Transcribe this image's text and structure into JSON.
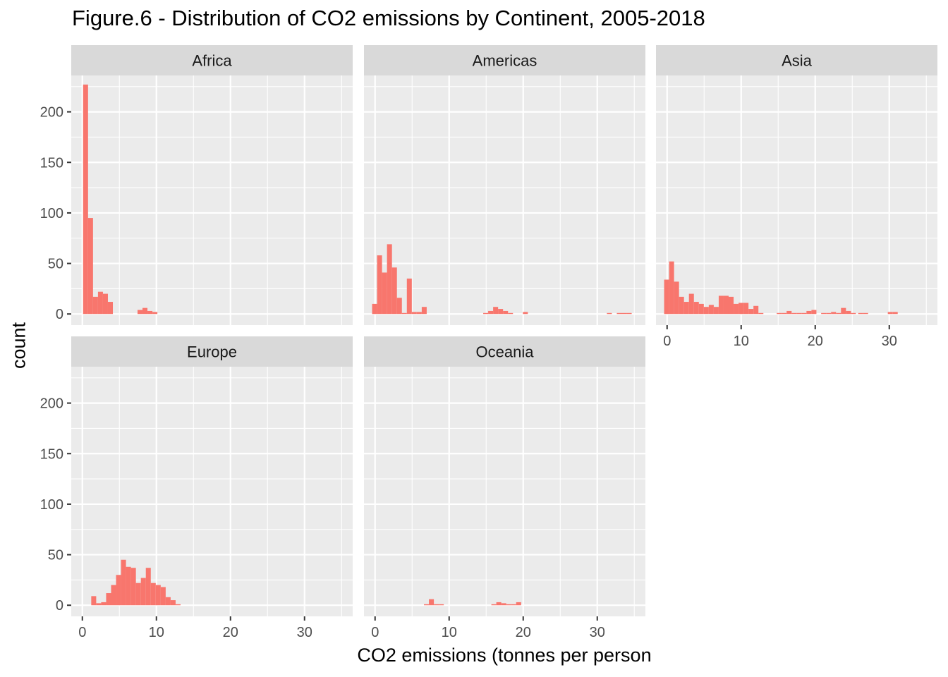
{
  "chart_data": {
    "type": "histogram",
    "title": "Figure.6 - Distribution of CO2 emissions by Continent, 2005-2018",
    "xlabel": "CO2 emissions (tonnes per person",
    "ylabel": "count",
    "xlim": [
      -1.5,
      36.5
    ],
    "ylim": [
      -11,
      236
    ],
    "x_ticks": [
      0,
      10,
      20,
      30
    ],
    "y_ticks": [
      0,
      50,
      100,
      150,
      200
    ],
    "bin_width": 0.67,
    "grid": true,
    "bar_color": "#F8766D",
    "panel_background": "#EBEBEB",
    "strip_background": "#D9D9D9",
    "panels": [
      {
        "name": "Africa",
        "bins": [
          {
            "x": 0.1,
            "count": 227
          },
          {
            "x": 0.77,
            "count": 95
          },
          {
            "x": 1.44,
            "count": 17
          },
          {
            "x": 2.11,
            "count": 22
          },
          {
            "x": 2.78,
            "count": 20
          },
          {
            "x": 3.45,
            "count": 12
          },
          {
            "x": 7.45,
            "count": 4
          },
          {
            "x": 8.12,
            "count": 6
          },
          {
            "x": 8.79,
            "count": 3
          },
          {
            "x": 9.46,
            "count": 2
          }
        ]
      },
      {
        "name": "Americas",
        "bins": [
          {
            "x": -0.4,
            "count": 10
          },
          {
            "x": 0.27,
            "count": 58
          },
          {
            "x": 0.94,
            "count": 41
          },
          {
            "x": 1.61,
            "count": 69
          },
          {
            "x": 2.28,
            "count": 46
          },
          {
            "x": 2.95,
            "count": 16
          },
          {
            "x": 3.62,
            "count": 1
          },
          {
            "x": 4.29,
            "count": 35
          },
          {
            "x": 4.96,
            "count": 2
          },
          {
            "x": 5.63,
            "count": 2
          },
          {
            "x": 6.3,
            "count": 7
          },
          {
            "x": 14.6,
            "count": 1
          },
          {
            "x": 15.27,
            "count": 3
          },
          {
            "x": 15.94,
            "count": 7
          },
          {
            "x": 16.61,
            "count": 5
          },
          {
            "x": 17.28,
            "count": 3
          },
          {
            "x": 17.95,
            "count": 1
          },
          {
            "x": 19.96,
            "count": 2
          },
          {
            "x": 31.3,
            "count": 1
          },
          {
            "x": 32.64,
            "count": 1
          },
          {
            "x": 33.31,
            "count": 1
          },
          {
            "x": 33.98,
            "count": 1
          }
        ]
      },
      {
        "name": "Asia",
        "bins": [
          {
            "x": -0.4,
            "count": 34
          },
          {
            "x": 0.27,
            "count": 52
          },
          {
            "x": 0.94,
            "count": 32
          },
          {
            "x": 1.61,
            "count": 17
          },
          {
            "x": 2.28,
            "count": 12
          },
          {
            "x": 2.95,
            "count": 20
          },
          {
            "x": 3.62,
            "count": 12
          },
          {
            "x": 4.29,
            "count": 10
          },
          {
            "x": 4.96,
            "count": 7
          },
          {
            "x": 5.63,
            "count": 9
          },
          {
            "x": 6.3,
            "count": 7
          },
          {
            "x": 6.97,
            "count": 18
          },
          {
            "x": 7.64,
            "count": 18
          },
          {
            "x": 8.31,
            "count": 17
          },
          {
            "x": 8.98,
            "count": 10
          },
          {
            "x": 9.65,
            "count": 11
          },
          {
            "x": 10.32,
            "count": 11
          },
          {
            "x": 10.99,
            "count": 5
          },
          {
            "x": 11.66,
            "count": 8
          },
          {
            "x": 12.33,
            "count": 1
          },
          {
            "x": 14.8,
            "count": 1
          },
          {
            "x": 15.47,
            "count": 1
          },
          {
            "x": 16.14,
            "count": 3
          },
          {
            "x": 16.81,
            "count": 1
          },
          {
            "x": 17.48,
            "count": 1
          },
          {
            "x": 18.15,
            "count": 1
          },
          {
            "x": 18.82,
            "count": 3
          },
          {
            "x": 19.49,
            "count": 4
          },
          {
            "x": 20.8,
            "count": 1
          },
          {
            "x": 21.47,
            "count": 1
          },
          {
            "x": 22.14,
            "count": 2
          },
          {
            "x": 22.81,
            "count": 1
          },
          {
            "x": 23.48,
            "count": 6
          },
          {
            "x": 24.15,
            "count": 3
          },
          {
            "x": 24.82,
            "count": 1
          },
          {
            "x": 25.8,
            "count": 1
          },
          {
            "x": 26.47,
            "count": 1
          },
          {
            "x": 29.8,
            "count": 2
          },
          {
            "x": 30.47,
            "count": 2
          }
        ]
      },
      {
        "name": "Europe",
        "bins": [
          {
            "x": 1.2,
            "count": 9
          },
          {
            "x": 1.87,
            "count": 2
          },
          {
            "x": 2.54,
            "count": 3
          },
          {
            "x": 3.21,
            "count": 12
          },
          {
            "x": 3.88,
            "count": 20
          },
          {
            "x": 4.55,
            "count": 30
          },
          {
            "x": 5.22,
            "count": 45
          },
          {
            "x": 5.89,
            "count": 38
          },
          {
            "x": 6.56,
            "count": 37
          },
          {
            "x": 7.23,
            "count": 22
          },
          {
            "x": 7.9,
            "count": 27
          },
          {
            "x": 8.57,
            "count": 37
          },
          {
            "x": 9.24,
            "count": 22
          },
          {
            "x": 9.91,
            "count": 20
          },
          {
            "x": 10.58,
            "count": 18
          },
          {
            "x": 11.25,
            "count": 8
          },
          {
            "x": 11.92,
            "count": 5
          },
          {
            "x": 12.59,
            "count": 1
          }
        ]
      },
      {
        "name": "Oceania",
        "bins": [
          {
            "x": 6.6,
            "count": 1
          },
          {
            "x": 7.27,
            "count": 6
          },
          {
            "x": 7.94,
            "count": 1
          },
          {
            "x": 8.61,
            "count": 1
          },
          {
            "x": 15.7,
            "count": 1
          },
          {
            "x": 16.37,
            "count": 3
          },
          {
            "x": 17.04,
            "count": 2
          },
          {
            "x": 17.71,
            "count": 1
          },
          {
            "x": 18.38,
            "count": 1
          },
          {
            "x": 19.05,
            "count": 3
          }
        ]
      }
    ]
  }
}
